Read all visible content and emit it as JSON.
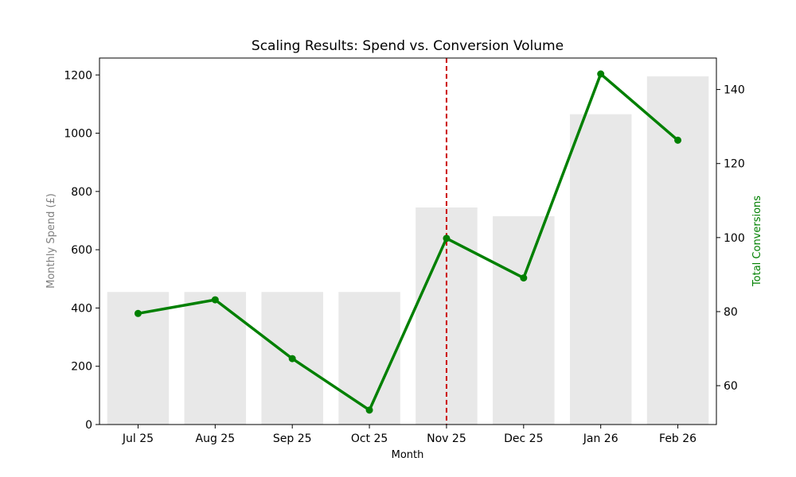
{
  "chart_data": {
    "type": "bar+line",
    "title": "Scaling Results: Spend vs. Conversion Volume",
    "xlabel": "Month",
    "categories": [
      "Jul 25",
      "Aug 25",
      "Sep 25",
      "Oct 25",
      "Nov 25",
      "Dec 25",
      "Jan 26",
      "Feb 26"
    ],
    "spend": {
      "axis_label": "Monthly Spend (£)",
      "values": [
        455,
        455,
        455,
        455,
        745,
        715,
        1065,
        1195
      ],
      "ylim": [
        0,
        1258
      ],
      "ticks": [
        0,
        200,
        400,
        600,
        800,
        1000,
        1200
      ],
      "color": "#e8e8e8",
      "label_color": "#808080"
    },
    "conversions": {
      "axis_label": "Total Conversions",
      "values": [
        79.5,
        83.2,
        67.3,
        53.4,
        99.8,
        89.1,
        144.2,
        126.3
      ],
      "ylim": [
        49.5,
        148.5
      ],
      "ticks": [
        60,
        80,
        100,
        120,
        140
      ],
      "color": "#008000"
    },
    "marker_line": {
      "category": "Nov 25",
      "color": "#cc0000",
      "style": "dashed"
    },
    "grid": false
  }
}
